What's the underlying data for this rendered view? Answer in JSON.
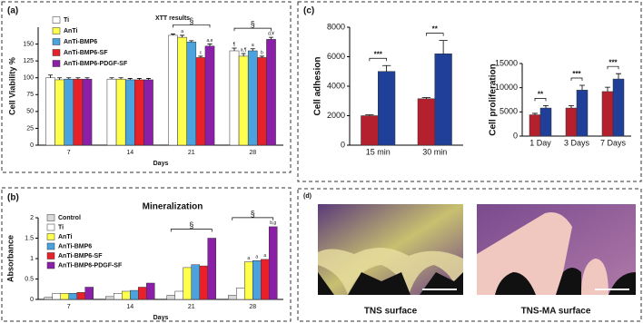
{
  "chart_data": [
    {
      "type": "bar",
      "panel": "(a)",
      "title": "XTT results",
      "x_label": "Days",
      "y_label": "Cell Viability %",
      "categories": [
        "7",
        "14",
        "21",
        "28"
      ],
      "ylim": [
        0,
        175
      ],
      "yticks": [
        0,
        25,
        50,
        75,
        100,
        125,
        150
      ],
      "legend": "upper left",
      "series": [
        {
          "name": "Ti",
          "color": "#ffffff",
          "values": [
            100,
            98,
            163,
            140
          ],
          "errors": [
            4,
            2,
            2,
            4
          ]
        },
        {
          "name": "AnTi",
          "color": "#ffff4d",
          "values": [
            97,
            98,
            160,
            132
          ],
          "errors": [
            3,
            2,
            3,
            4
          ]
        },
        {
          "name": "AnTi-BMP6",
          "color": "#4aa3df",
          "values": [
            98,
            97,
            153,
            140
          ],
          "errors": [
            2,
            2,
            2,
            3
          ]
        },
        {
          "name": "AnTi-BMP6-SF",
          "color": "#e8202a",
          "values": [
            98,
            97,
            130,
            130
          ],
          "errors": [
            2,
            2,
            2,
            2
          ]
        },
        {
          "name": "AnTi-BMP6-PDGF-SF",
          "color": "#8b1fa8",
          "values": [
            98,
            97,
            147,
            157
          ],
          "errors": [
            2,
            2,
            3,
            3
          ]
        }
      ],
      "annotations": [
        "§",
        "§",
        "a",
        "c",
        "a,e",
        "¶",
        "a,¶",
        "a",
        "b",
        "d,¥"
      ]
    },
    {
      "type": "bar",
      "panel": "(b)",
      "title": "Mineralization",
      "x_label": "Days",
      "y_label": "Absorbance",
      "categories": [
        "7",
        "14",
        "21",
        "28"
      ],
      "ylim": [
        0,
        2
      ],
      "yticks": [
        0,
        0.5,
        1,
        1.5,
        2
      ],
      "legend": "upper left",
      "series": [
        {
          "name": "Control",
          "color": "#d9d9d9",
          "values": [
            0.05,
            0.07,
            0.1,
            0.1
          ]
        },
        {
          "name": "Ti",
          "color": "#ffffff",
          "values": [
            0.15,
            0.15,
            0.2,
            0.28
          ]
        },
        {
          "name": "AnTi",
          "color": "#ffff4d",
          "values": [
            0.15,
            0.2,
            0.78,
            0.92
          ]
        },
        {
          "name": "AnTi-BMP6",
          "color": "#4aa3df",
          "values": [
            0.15,
            0.22,
            0.85,
            0.95
          ]
        },
        {
          "name": "AnTi-BMP6-SF",
          "color": "#e8202a",
          "values": [
            0.17,
            0.3,
            0.82,
            0.98
          ]
        },
        {
          "name": "AnTi-BMP6-PDGF-SF",
          "color": "#8b1fa8",
          "values": [
            0.3,
            0.4,
            1.5,
            1.78
          ]
        }
      ],
      "annotations": [
        "§",
        "§",
        "a",
        "a",
        "a",
        "b,g"
      ]
    },
    {
      "type": "bar",
      "panel": "(c)",
      "y_label": "Cell adhesion",
      "categories": [
        "15 min",
        "30 min"
      ],
      "ylim": [
        0,
        8000
      ],
      "yticks": [
        0,
        2000,
        4000,
        6000,
        8000
      ],
      "series": [
        {
          "color": "#b5202e",
          "values": [
            2000,
            3150
          ],
          "errors": [
            60,
            80
          ]
        },
        {
          "color": "#1f3f99",
          "values": [
            5000,
            6200
          ],
          "errors": [
            400,
            900
          ]
        }
      ],
      "annotations": [
        "***",
        "**"
      ]
    },
    {
      "type": "bar",
      "y_label": "Cell proliferation",
      "categories": [
        "1 Day",
        "3 Days",
        "7 Days"
      ],
      "ylim": [
        0,
        15000
      ],
      "yticks": [
        0,
        5000,
        10000,
        15000
      ],
      "series": [
        {
          "color": "#b5202e",
          "values": [
            4400,
            5800,
            9200
          ],
          "errors": [
            300,
            500,
            900
          ]
        },
        {
          "color": "#1f3f99",
          "values": [
            5800,
            9500,
            11800
          ],
          "errors": [
            500,
            1000,
            1100
          ]
        }
      ],
      "annotations": [
        "**",
        "***",
        "***"
      ]
    }
  ],
  "images": {
    "panel": "(d)",
    "captions": [
      "TNS surface",
      "TNS-MA surface"
    ]
  }
}
